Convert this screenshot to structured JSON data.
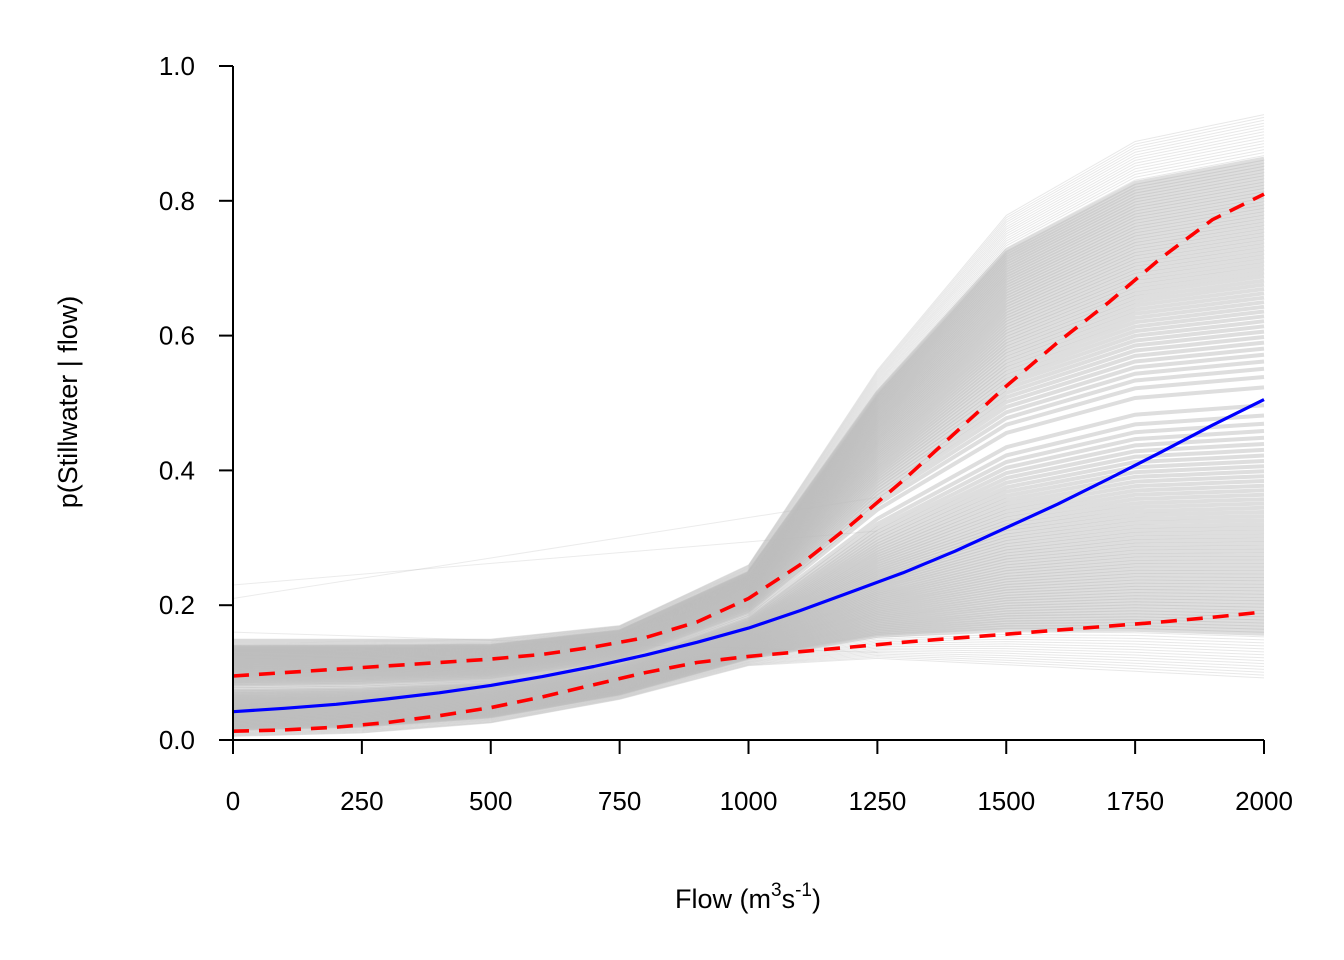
{
  "chart_data": {
    "type": "line",
    "title": "",
    "xlabel": {
      "prefix": "Flow (m",
      "sup1": "3",
      "mid": "s",
      "sup2": "-1",
      "suffix": ")"
    },
    "ylabel": "p(Stillwater | flow)",
    "xlim": [
      0,
      2000
    ],
    "ylim": [
      0,
      1.0
    ],
    "x_ticks": [
      0,
      250,
      500,
      750,
      1000,
      1250,
      1500,
      1750,
      2000
    ],
    "x_tick_labels": [
      "0",
      "250",
      "500",
      "750",
      "1000",
      "1250",
      "1500",
      "1750",
      "2000"
    ],
    "y_ticks": [
      0,
      0.2,
      0.4,
      0.6,
      0.8,
      1.0
    ],
    "y_tick_labels": [
      "0.0",
      "0.2",
      "0.4",
      "0.6",
      "0.8",
      "1.0"
    ],
    "grid": false,
    "colors": {
      "median": "#0000ff",
      "interval": "#ff0000",
      "posterior_draws": "#bebebe"
    },
    "posterior_band": {
      "x": [
        0,
        250,
        500,
        750,
        1000,
        1250,
        1500,
        1750,
        2000
      ],
      "lower": [
        0.005,
        0.01,
        0.025,
        0.06,
        0.11,
        0.12,
        0.11,
        0.1,
        0.09
      ],
      "upper": [
        0.15,
        0.15,
        0.15,
        0.17,
        0.26,
        0.55,
        0.78,
        0.89,
        0.93
      ]
    },
    "series": [
      {
        "role": "median",
        "style": "solid",
        "x": [
          0,
          100,
          200,
          300,
          400,
          500,
          600,
          700,
          800,
          900,
          1000,
          1100,
          1200,
          1300,
          1400,
          1500,
          1600,
          1700,
          1800,
          1900,
          2000
        ],
        "y": [
          0.042,
          0.047,
          0.053,
          0.061,
          0.07,
          0.081,
          0.094,
          0.109,
          0.126,
          0.145,
          0.166,
          0.192,
          0.22,
          0.248,
          0.28,
          0.315,
          0.35,
          0.388,
          0.427,
          0.467,
          0.505
        ]
      },
      {
        "role": "upper-interval",
        "style": "dashed",
        "x": [
          0,
          100,
          200,
          300,
          400,
          500,
          600,
          700,
          800,
          900,
          1000,
          1100,
          1200,
          1300,
          1400,
          1500,
          1600,
          1700,
          1800,
          1900,
          2000
        ],
        "y": [
          0.095,
          0.1,
          0.105,
          0.11,
          0.115,
          0.12,
          0.127,
          0.138,
          0.152,
          0.175,
          0.21,
          0.26,
          0.32,
          0.385,
          0.455,
          0.525,
          0.59,
          0.65,
          0.715,
          0.772,
          0.81
        ]
      },
      {
        "role": "lower-interval",
        "style": "dashed",
        "x": [
          0,
          100,
          200,
          300,
          400,
          500,
          600,
          700,
          800,
          900,
          1000,
          1100,
          1200,
          1300,
          1400,
          1500,
          1600,
          1700,
          1800,
          1900,
          2000
        ],
        "y": [
          0.013,
          0.015,
          0.019,
          0.026,
          0.036,
          0.048,
          0.064,
          0.082,
          0.1,
          0.115,
          0.124,
          0.131,
          0.138,
          0.145,
          0.151,
          0.157,
          0.163,
          0.169,
          0.175,
          0.182,
          0.19
        ]
      }
    ]
  }
}
